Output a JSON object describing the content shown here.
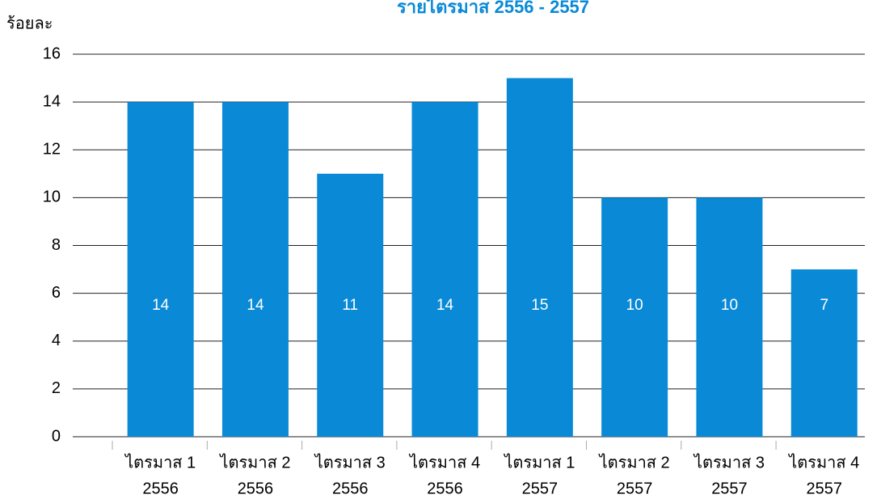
{
  "chart_data": {
    "type": "bar",
    "title": "รายไตรมาส 2556 - 2557",
    "y_label": "ร้อยละ",
    "categories": [
      [
        "ไตรมาส 1",
        "2556"
      ],
      [
        "ไตรมาส 2",
        "2556"
      ],
      [
        "ไตรมาส 3",
        "2556"
      ],
      [
        "ไตรมาส 4",
        "2556"
      ],
      [
        "ไตรมาส 1",
        "2557"
      ],
      [
        "ไตรมาส 2",
        "2557"
      ],
      [
        "ไตรมาส 3",
        "2557"
      ],
      [
        "ไตรมาส 4",
        "2557"
      ]
    ],
    "values": [
      14,
      14,
      11,
      14,
      15,
      10,
      10,
      7
    ],
    "color": "#0a8ad6",
    "ylim": [
      0,
      16
    ],
    "yticks": [
      0,
      2,
      4,
      6,
      8,
      10,
      12,
      14,
      16
    ],
    "grid": true
  }
}
